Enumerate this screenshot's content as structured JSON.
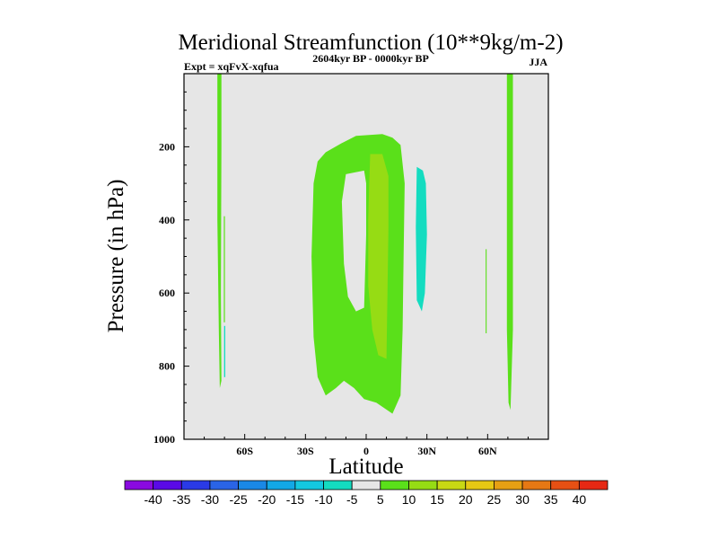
{
  "chart_data": {
    "type": "contour",
    "title": "Meridional Streamfunction (10**9kg/m-2)",
    "left_subtitle": "Expt = xqFvX-xqfua",
    "center_subtitle": "2604kyr BP - 0000kyr BP",
    "right_subtitle": "JJA",
    "xlabel": "Latitude",
    "ylabel": "Pressure (in hPa)",
    "xlim": [
      -90,
      90
    ],
    "ylim": [
      1000,
      0
    ],
    "x_ticks": [
      {
        "value": -60,
        "label": "60S"
      },
      {
        "value": -30,
        "label": "30S"
      },
      {
        "value": 0,
        "label": "0"
      },
      {
        "value": 30,
        "label": "30N"
      },
      {
        "value": 60,
        "label": "60N"
      }
    ],
    "y_ticks": [
      {
        "value": 200,
        "label": "200"
      },
      {
        "value": 400,
        "label": "400"
      },
      {
        "value": 600,
        "label": "600"
      },
      {
        "value": 800,
        "label": "800"
      },
      {
        "value": 1000,
        "label": "1000"
      }
    ],
    "background_color": "#e6e6e6",
    "colorbar": {
      "levels": [
        -40,
        -35,
        -30,
        -25,
        -20,
        -15,
        -10,
        -5,
        5,
        10,
        15,
        20,
        25,
        30,
        35,
        40
      ],
      "colors": [
        "#8a0ae0",
        "#5a0ae6",
        "#2a3ae6",
        "#2a64e6",
        "#1a88e6",
        "#12a8e6",
        "#14c8e0",
        "#14dcc0",
        "#e6e6e6",
        "#5ae01a",
        "#96dc14",
        "#c8d814",
        "#e6c814",
        "#e6a014",
        "#e67814",
        "#e65014",
        "#e62814"
      ]
    },
    "regions": [
      {
        "name": "green-far-south",
        "level": 5,
        "color": "#5ae01a",
        "points": [
          [
            -73.5,
            0
          ],
          [
            -71.5,
            0
          ],
          [
            -71.5,
            200
          ],
          [
            -71.8,
            600
          ],
          [
            -71.5,
            840
          ],
          [
            -72.3,
            860
          ],
          [
            -72.8,
            700
          ],
          [
            -73.5,
            400
          ]
        ]
      },
      {
        "name": "green-south-thin",
        "level": 5,
        "color": "#5ae01a",
        "points": [
          [
            -70.3,
            390
          ],
          [
            -69.8,
            390
          ],
          [
            -69.8,
            680
          ],
          [
            -70.3,
            680
          ]
        ]
      },
      {
        "name": "cyan-far-south",
        "level": -5,
        "color": "#14dcc0",
        "points": [
          [
            -70.2,
            690
          ],
          [
            -69.6,
            690
          ],
          [
            -69.6,
            830
          ],
          [
            -70.2,
            830
          ]
        ]
      },
      {
        "name": "green-central",
        "level": 5,
        "color": "#5ae01a",
        "points": [
          [
            -26,
            300
          ],
          [
            -24,
            240
          ],
          [
            -20,
            215
          ],
          [
            -12,
            190
          ],
          [
            -5,
            170
          ],
          [
            8,
            165
          ],
          [
            13,
            175
          ],
          [
            17,
            195
          ],
          [
            19,
            300
          ],
          [
            18.5,
            500
          ],
          [
            18,
            700
          ],
          [
            17,
            880
          ],
          [
            13,
            930
          ],
          [
            5,
            900
          ],
          [
            -1,
            890
          ],
          [
            -6,
            860
          ],
          [
            -11,
            840
          ],
          [
            -15,
            860
          ],
          [
            -20,
            880
          ],
          [
            -24,
            830
          ],
          [
            -26,
            720
          ],
          [
            -27,
            500
          ]
        ]
      },
      {
        "name": "gap-central",
        "level": 0,
        "color": "#e6e6e6",
        "points": [
          [
            -10,
            275
          ],
          [
            -1,
            265
          ],
          [
            0,
            300
          ],
          [
            0,
            440
          ],
          [
            -1,
            640
          ],
          [
            -5,
            650
          ],
          [
            -9,
            610
          ],
          [
            -11,
            520
          ],
          [
            -12,
            350
          ]
        ]
      },
      {
        "name": "lime-core",
        "level": 10,
        "color": "#96dc14",
        "points": [
          [
            2,
            220
          ],
          [
            8,
            220
          ],
          [
            11,
            280
          ],
          [
            11,
            420
          ],
          [
            10.5,
            600
          ],
          [
            10,
            780
          ],
          [
            6,
            770
          ],
          [
            3,
            700
          ],
          [
            1,
            580
          ],
          [
            1,
            400
          ],
          [
            1.5,
            300
          ]
        ]
      },
      {
        "name": "cyan-30n",
        "level": -5,
        "color": "#14dcc0",
        "points": [
          [
            25,
            255
          ],
          [
            28,
            265
          ],
          [
            29.5,
            300
          ],
          [
            30,
            440
          ],
          [
            29,
            600
          ],
          [
            27.5,
            650
          ],
          [
            25,
            620
          ],
          [
            24.5,
            420
          ]
        ]
      },
      {
        "name": "green-60n-thin",
        "level": 5,
        "color": "#5ae01a",
        "points": [
          [
            59,
            480
          ],
          [
            59.5,
            480
          ],
          [
            59.5,
            710
          ],
          [
            59,
            710
          ]
        ]
      },
      {
        "name": "green-far-north",
        "level": 5,
        "color": "#5ae01a",
        "points": [
          [
            69.5,
            0
          ],
          [
            72.5,
            0
          ],
          [
            72.5,
            200
          ],
          [
            72.5,
            700
          ],
          [
            71.3,
            920
          ],
          [
            70.3,
            900
          ],
          [
            69.5,
            700
          ]
        ]
      }
    ]
  }
}
